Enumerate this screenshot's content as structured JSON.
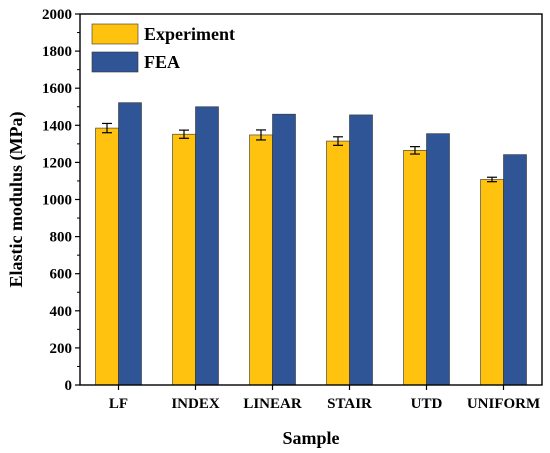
{
  "chart_data": {
    "type": "bar",
    "xlabel": "Sample",
    "ylabel": "Elastic modulus (MPa)",
    "ylim": [
      0,
      2000
    ],
    "yticks": [
      0,
      200,
      400,
      600,
      800,
      1000,
      1200,
      1400,
      1600,
      1800,
      2000
    ],
    "categories": [
      "LF",
      "INDEX",
      "LINEAR",
      "STAIR",
      "UTD",
      "UNIFORM"
    ],
    "series": [
      {
        "name": "Experiment",
        "color": "#FFC20E",
        "values": [
          1385,
          1352,
          1348,
          1315,
          1265,
          1108
        ],
        "errors": [
          25,
          22,
          27,
          23,
          20,
          12
        ]
      },
      {
        "name": "FEA",
        "color": "#2F5597",
        "values": [
          1522,
          1500,
          1460,
          1456,
          1355,
          1242
        ]
      }
    ],
    "legend": "top-left",
    "grid": false
  }
}
